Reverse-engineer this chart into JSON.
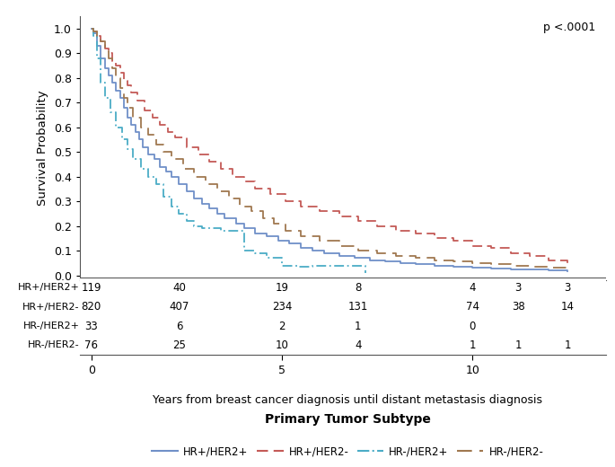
{
  "xlabel": "Years from breast cancer diagnosis until distant metastasis diagnosis",
  "xlabel2": "Primary Tumor Subtype",
  "ylabel": "Survival Probability",
  "pvalue_text": "p <.0001",
  "xlim": [
    -0.3,
    13.5
  ],
  "ylim": [
    -0.02,
    1.05
  ],
  "xticks": [
    0,
    5,
    10
  ],
  "yticks": [
    0.0,
    0.1,
    0.2,
    0.3,
    0.4,
    0.5,
    0.6,
    0.7,
    0.8,
    0.9,
    1.0
  ],
  "risk_table": {
    "labels": [
      "HR+/HER2+",
      "HR+/HER2-",
      "HR-/HER2+",
      "HR-/HER2-"
    ],
    "col_positions": [
      0,
      2.3,
      5.0,
      7.0,
      10.0,
      11.2,
      12.5
    ],
    "values": [
      [
        119,
        40,
        19,
        8,
        4,
        3,
        3
      ],
      [
        820,
        407,
        234,
        131,
        74,
        38,
        14
      ],
      [
        33,
        6,
        2,
        1,
        0,
        null,
        null
      ],
      [
        76,
        25,
        10,
        4,
        1,
        1,
        1
      ]
    ]
  },
  "curves": {
    "HR+/HER2+": {
      "color": "#7090c8",
      "linestyle": "solid",
      "linewidth": 1.3,
      "x": [
        0,
        0.05,
        0.15,
        0.25,
        0.35,
        0.45,
        0.55,
        0.65,
        0.75,
        0.85,
        0.95,
        1.05,
        1.15,
        1.25,
        1.35,
        1.5,
        1.65,
        1.8,
        1.95,
        2.1,
        2.3,
        2.5,
        2.7,
        2.9,
        3.1,
        3.3,
        3.5,
        3.8,
        4.0,
        4.3,
        4.6,
        4.9,
        5.2,
        5.5,
        5.8,
        6.1,
        6.5,
        6.9,
        7.3,
        7.7,
        8.1,
        8.5,
        9.0,
        9.5,
        10.0,
        10.5,
        11.0,
        11.5,
        12.0,
        12.5
      ],
      "y": [
        1.0,
        0.98,
        0.93,
        0.88,
        0.84,
        0.81,
        0.78,
        0.75,
        0.72,
        0.68,
        0.64,
        0.61,
        0.58,
        0.55,
        0.52,
        0.49,
        0.47,
        0.44,
        0.42,
        0.4,
        0.37,
        0.34,
        0.31,
        0.29,
        0.27,
        0.25,
        0.23,
        0.21,
        0.19,
        0.17,
        0.16,
        0.14,
        0.13,
        0.11,
        0.1,
        0.09,
        0.08,
        0.07,
        0.06,
        0.055,
        0.05,
        0.045,
        0.04,
        0.035,
        0.03,
        0.028,
        0.025,
        0.022,
        0.02,
        0.018
      ]
    },
    "HR+/HER2-": {
      "color": "#c45a57",
      "linestyle": "dashed",
      "linewidth": 1.3,
      "x": [
        0,
        0.05,
        0.15,
        0.25,
        0.35,
        0.45,
        0.55,
        0.65,
        0.75,
        0.85,
        0.95,
        1.05,
        1.2,
        1.4,
        1.6,
        1.8,
        2.0,
        2.2,
        2.5,
        2.8,
        3.1,
        3.4,
        3.7,
        4.0,
        4.3,
        4.7,
        5.1,
        5.5,
        6.0,
        6.5,
        7.0,
        7.5,
        8.0,
        8.5,
        9.0,
        9.5,
        10.0,
        10.5,
        11.0,
        11.5,
        12.0,
        12.5
      ],
      "y": [
        1.0,
        0.99,
        0.97,
        0.95,
        0.92,
        0.9,
        0.87,
        0.85,
        0.82,
        0.79,
        0.77,
        0.74,
        0.71,
        0.67,
        0.64,
        0.61,
        0.58,
        0.56,
        0.52,
        0.49,
        0.46,
        0.43,
        0.4,
        0.38,
        0.35,
        0.33,
        0.3,
        0.28,
        0.26,
        0.24,
        0.22,
        0.2,
        0.18,
        0.17,
        0.15,
        0.14,
        0.12,
        0.11,
        0.09,
        0.08,
        0.06,
        0.04
      ]
    },
    "HR-/HER2+": {
      "color": "#4bacc6",
      "linestyle": "dashdot",
      "linewidth": 1.3,
      "x": [
        0,
        0.05,
        0.15,
        0.25,
        0.35,
        0.5,
        0.65,
        0.8,
        0.95,
        1.1,
        1.3,
        1.5,
        1.7,
        1.9,
        2.1,
        2.3,
        2.5,
        2.7,
        2.9,
        3.1,
        3.4,
        3.7,
        4.0,
        4.3,
        4.6,
        5.0,
        5.4,
        5.8,
        6.3,
        6.8,
        7.2
      ],
      "y": [
        1.0,
        0.97,
        0.88,
        0.78,
        0.72,
        0.66,
        0.6,
        0.55,
        0.51,
        0.47,
        0.43,
        0.4,
        0.37,
        0.32,
        0.28,
        0.25,
        0.22,
        0.2,
        0.19,
        0.19,
        0.18,
        0.18,
        0.1,
        0.09,
        0.07,
        0.04,
        0.035,
        0.04,
        0.04,
        0.04,
        0.01
      ]
    },
    "HR-/HER2-": {
      "color": "#a07850",
      "linestyle": "dashed",
      "linewidth": 1.3,
      "x": [
        0,
        0.05,
        0.15,
        0.25,
        0.35,
        0.45,
        0.55,
        0.65,
        0.75,
        0.85,
        0.95,
        1.1,
        1.3,
        1.5,
        1.7,
        1.9,
        2.1,
        2.4,
        2.7,
        3.0,
        3.3,
        3.6,
        3.9,
        4.2,
        4.5,
        4.8,
        5.1,
        5.5,
        6.0,
        6.5,
        7.0,
        7.5,
        8.0,
        8.5,
        9.0,
        9.5,
        10.0,
        10.5,
        11.0,
        11.5,
        12.0,
        12.5
      ],
      "y": [
        1.0,
        0.99,
        0.97,
        0.95,
        0.91,
        0.88,
        0.84,
        0.8,
        0.76,
        0.72,
        0.68,
        0.64,
        0.6,
        0.57,
        0.53,
        0.5,
        0.47,
        0.43,
        0.4,
        0.37,
        0.34,
        0.31,
        0.28,
        0.26,
        0.23,
        0.21,
        0.18,
        0.16,
        0.14,
        0.12,
        0.1,
        0.09,
        0.08,
        0.07,
        0.06,
        0.055,
        0.05,
        0.045,
        0.04,
        0.035,
        0.03,
        0.025
      ]
    }
  },
  "legend_labels": [
    "HR+/HER2+",
    "HR+/HER2-",
    "HR-/HER2+",
    "HR-/HER2-"
  ],
  "legend_colors": [
    "#7090c8",
    "#c45a57",
    "#4bacc6",
    "#a07850"
  ],
  "legend_linestyles": [
    "solid",
    "dashed",
    "dashdot",
    "dashed"
  ],
  "legend_dashes": [
    [],
    [
      6,
      3
    ],
    [
      6,
      2,
      1,
      2
    ],
    [
      8,
      4
    ]
  ]
}
